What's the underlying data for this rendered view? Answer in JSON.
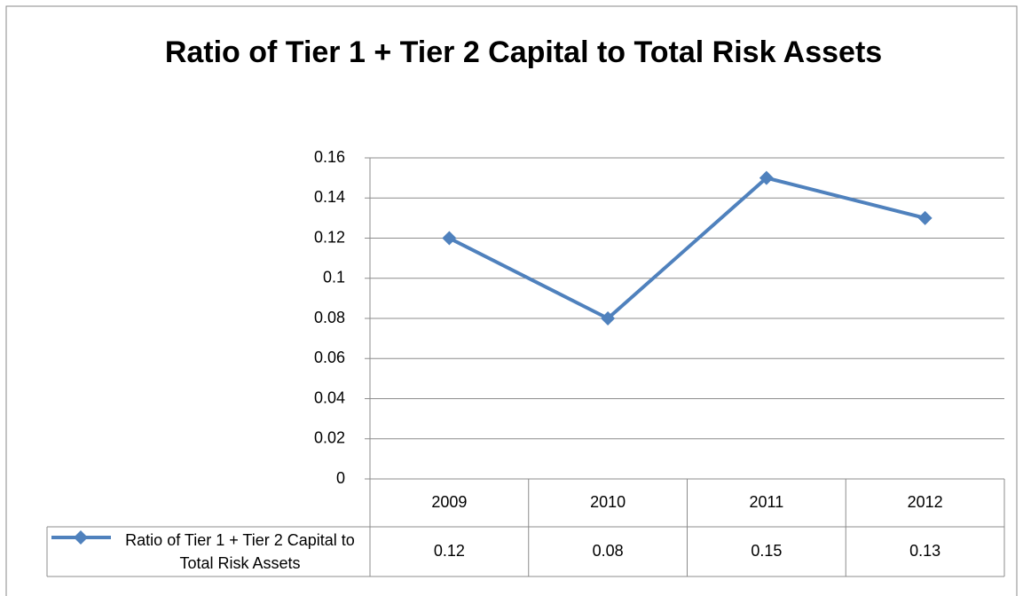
{
  "chart_data": {
    "type": "line",
    "title": "Ratio of Tier 1 + Tier 2 Capital to Total Risk Assets",
    "categories": [
      "2009",
      "2010",
      "2011",
      "2012"
    ],
    "series": [
      {
        "name": "Ratio of Tier 1 + Tier 2 Capital to Total Risk Assets",
        "color": "#4f81bd",
        "values": [
          0.12,
          0.08,
          0.15,
          0.13
        ]
      }
    ],
    "ylim": [
      0,
      0.16
    ],
    "yticks": [
      0,
      0.02,
      0.04,
      0.06,
      0.08,
      0.1,
      0.12,
      0.14,
      0.16
    ],
    "grid": true,
    "data_table": true
  }
}
